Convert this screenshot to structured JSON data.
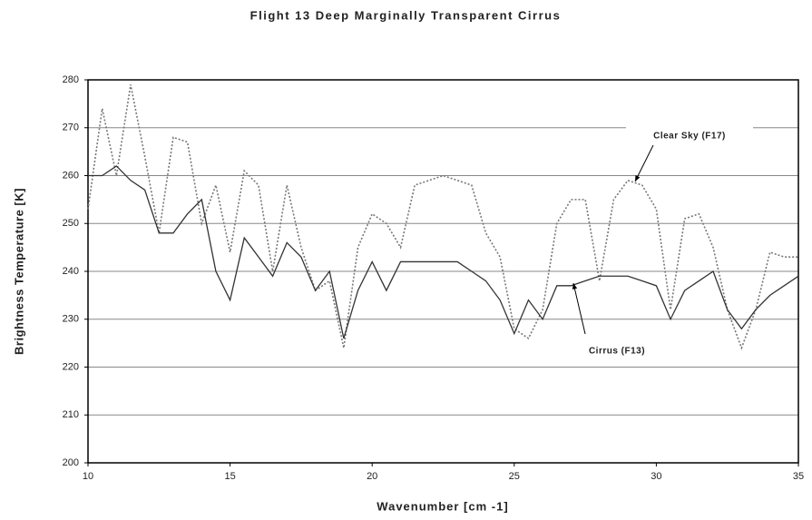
{
  "chart_data": {
    "type": "line",
    "title": "Flight 13 Deep Marginally Transparent Cirrus",
    "x_label": "Wavenumber [cm -1]",
    "y_label": "Brightness Temperature [K]",
    "x": [
      10,
      10.5,
      11,
      11.5,
      12,
      12.5,
      13,
      13.5,
      14,
      14.5,
      15,
      15.5,
      16,
      16.5,
      17,
      17.5,
      18,
      18.5,
      19,
      19.5,
      20,
      20.5,
      21,
      21.5,
      22,
      22.5,
      23,
      23.5,
      24,
      24.5,
      25,
      25.5,
      26,
      26.5,
      27,
      27.5,
      28,
      28.5,
      29,
      29.5,
      30,
      30.5,
      31,
      31.5,
      32,
      32.5,
      33,
      33.5,
      34,
      34.5,
      35
    ],
    "series": [
      {
        "name": "Clear Sky (F17)",
        "color": "#777777",
        "dash": "dotted",
        "values": [
          253,
          274,
          260,
          279,
          264,
          248,
          268,
          267,
          250,
          258,
          244,
          261,
          258,
          240,
          258,
          245,
          236,
          238,
          224,
          245,
          252,
          250,
          245,
          258,
          259,
          260,
          259,
          258,
          248,
          243,
          228,
          226,
          232,
          250,
          255,
          255,
          238,
          255,
          259,
          258,
          253,
          232,
          251,
          252,
          245,
          232,
          224,
          232,
          244,
          243,
          243
        ]
      },
      {
        "name": "Cirrus (F13)",
        "color": "#333333",
        "dash": "solid",
        "values": [
          260,
          260,
          262,
          259,
          257,
          248,
          248,
          252,
          255,
          240,
          234,
          247,
          243,
          239,
          246,
          243,
          236,
          240,
          226,
          236,
          242,
          236,
          242,
          242,
          242,
          242,
          242,
          240,
          238,
          234,
          227,
          234,
          230,
          237,
          237,
          238,
          239,
          239,
          239,
          238,
          237,
          230,
          236,
          238,
          240,
          232,
          228,
          232,
          235,
          237,
          239
        ]
      }
    ],
    "xlim": [
      10,
      35
    ],
    "xticks": [
      10,
      15,
      20,
      25,
      30,
      35
    ],
    "ylim": [
      200,
      280
    ],
    "yticks": [
      200,
      210,
      220,
      230,
      240,
      250,
      260,
      270,
      280
    ],
    "grid": true
  }
}
